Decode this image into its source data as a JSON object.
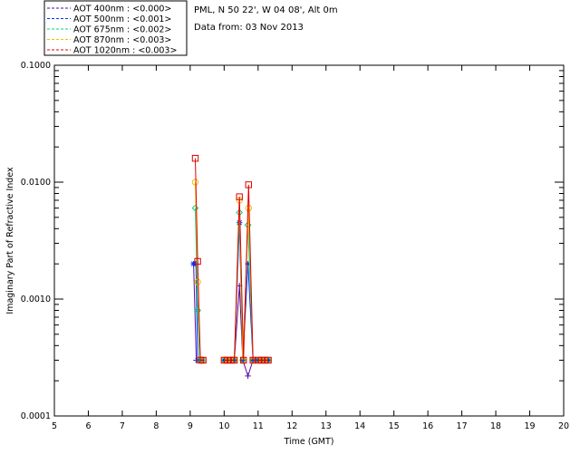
{
  "header": {
    "station": "PML, N 50 22', W 04 08', Alt 0m",
    "date": "Data from: 03 Nov 2013"
  },
  "chart_data": {
    "type": "line",
    "xlabel": "Time (GMT)",
    "ylabel": "Imaginary Part of Refractive Index",
    "xlim": [
      5,
      20
    ],
    "ylim": [
      0.0001,
      0.1
    ],
    "yscale": "log",
    "xticks": [
      "5",
      "6",
      "7",
      "8",
      "9",
      "10",
      "11",
      "12",
      "13",
      "14",
      "15",
      "16",
      "17",
      "18",
      "19",
      "20"
    ],
    "yticks": [
      {
        "value": 0.1,
        "label": "0.1000"
      },
      {
        "value": 0.01,
        "label": "0.0100"
      },
      {
        "value": 0.001,
        "label": "0.0010"
      },
      {
        "value": 0.0001,
        "label": "0.0001"
      }
    ],
    "legend_position": "top-left, outside plot",
    "series": [
      {
        "name": "AOT  400nm : <0.000>",
        "color": "#5a0aa0",
        "marker": "plus",
        "segments": [
          [
            [
              9.1,
              0.002
            ],
            [
              9.18,
              0.0003
            ],
            [
              9.25,
              0.0003
            ],
            [
              9.35,
              0.0003
            ]
          ],
          [
            [
              10.0,
              0.0003
            ],
            [
              10.1,
              0.0003
            ],
            [
              10.2,
              0.0003
            ],
            [
              10.3,
              0.0003
            ],
            [
              10.45,
              0.0013
            ],
            [
              10.55,
              0.0003
            ],
            [
              10.7,
              0.00022
            ],
            [
              10.85,
              0.0003
            ],
            [
              11.0,
              0.0003
            ],
            [
              11.1,
              0.0003
            ],
            [
              11.2,
              0.0003
            ],
            [
              11.3,
              0.0003
            ]
          ]
        ]
      },
      {
        "name": "AOT  500nm : <0.001>",
        "color": "#0030ff",
        "marker": "star",
        "segments": [
          [
            [
              9.1,
              0.002
            ],
            [
              9.17,
              0.002
            ],
            [
              9.22,
              0.0003
            ],
            [
              9.35,
              0.0003
            ]
          ],
          [
            [
              10.0,
              0.0003
            ],
            [
              10.1,
              0.0003
            ],
            [
              10.2,
              0.0003
            ],
            [
              10.3,
              0.0003
            ],
            [
              10.45,
              0.0045
            ],
            [
              10.55,
              0.0003
            ],
            [
              10.7,
              0.002
            ],
            [
              10.85,
              0.0003
            ],
            [
              11.0,
              0.0003
            ],
            [
              11.1,
              0.0003
            ],
            [
              11.2,
              0.0003
            ],
            [
              11.3,
              0.0003
            ]
          ]
        ]
      },
      {
        "name": "AOT  675nm : <0.002>",
        "color": "#00d080",
        "marker": "diamond",
        "segments": [
          [
            [
              9.15,
              0.006
            ],
            [
              9.22,
              0.0008
            ],
            [
              9.28,
              0.0003
            ],
            [
              9.35,
              0.0003
            ]
          ],
          [
            [
              10.0,
              0.0003
            ],
            [
              10.1,
              0.0003
            ],
            [
              10.2,
              0.0003
            ],
            [
              10.3,
              0.0003
            ],
            [
              10.45,
              0.0055
            ],
            [
              10.55,
              0.0003
            ],
            [
              10.7,
              0.0043
            ],
            [
              10.85,
              0.0003
            ],
            [
              11.0,
              0.0003
            ],
            [
              11.1,
              0.0003
            ],
            [
              11.2,
              0.0003
            ],
            [
              11.3,
              0.0003
            ]
          ]
        ]
      },
      {
        "name": "AOT  870nm : <0.003>",
        "color": "#f0c000",
        "marker": "circle",
        "segments": [
          [
            [
              9.15,
              0.01
            ],
            [
              9.22,
              0.0014
            ],
            [
              9.3,
              0.0003
            ],
            [
              9.38,
              0.0003
            ]
          ],
          [
            [
              10.0,
              0.0003
            ],
            [
              10.1,
              0.0003
            ],
            [
              10.2,
              0.0003
            ],
            [
              10.3,
              0.0003
            ],
            [
              10.45,
              0.007
            ],
            [
              10.55,
              0.0003
            ],
            [
              10.72,
              0.006
            ],
            [
              10.85,
              0.0003
            ],
            [
              11.0,
              0.0003
            ],
            [
              11.1,
              0.0003
            ],
            [
              11.2,
              0.0003
            ],
            [
              11.3,
              0.0003
            ]
          ]
        ]
      },
      {
        "name": "AOT 1020nm : <0.003>",
        "color": "#e00000",
        "marker": "square",
        "segments": [
          [
            [
              9.15,
              0.016
            ],
            [
              9.22,
              0.0021
            ],
            [
              9.3,
              0.0003
            ],
            [
              9.38,
              0.0003
            ]
          ],
          [
            [
              10.0,
              0.0003
            ],
            [
              10.1,
              0.0003
            ],
            [
              10.2,
              0.0003
            ],
            [
              10.3,
              0.0003
            ],
            [
              10.45,
              0.0075
            ],
            [
              10.57,
              0.0003
            ],
            [
              10.72,
              0.0095
            ],
            [
              10.85,
              0.0003
            ],
            [
              11.0,
              0.0003
            ],
            [
              11.1,
              0.0003
            ],
            [
              11.2,
              0.0003
            ],
            [
              11.3,
              0.0003
            ]
          ]
        ]
      }
    ]
  }
}
